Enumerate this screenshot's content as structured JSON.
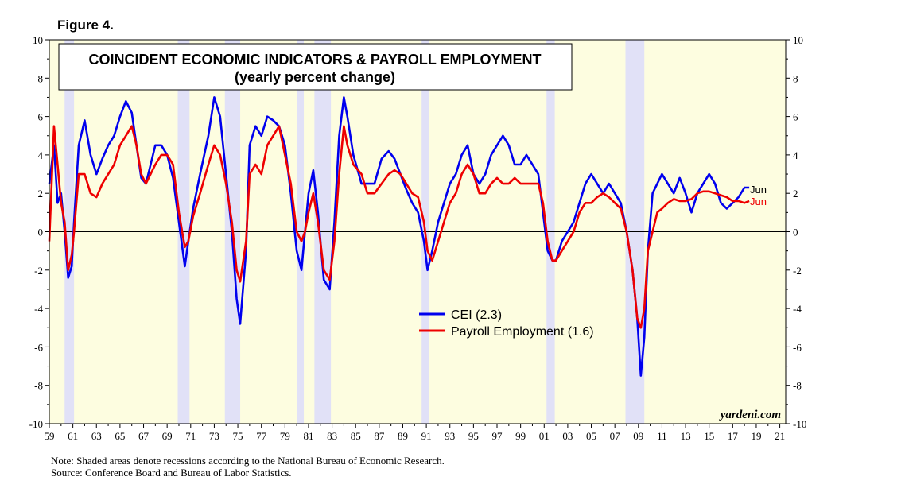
{
  "figure_label": "Figure 4.",
  "notes": {
    "line1": "Note: Shaded areas denote recessions according to the National Bureau of Economic Research.",
    "line2": "Source: Conference Board and Bureau of Labor Statistics."
  },
  "watermark": "yardeni.com",
  "colors": {
    "cei": "#0000ee",
    "payroll": "#ee0000",
    "recession": "#e1e1f7",
    "background": "#fdfde0"
  },
  "chart_data": {
    "type": "line",
    "title": "COINCIDENT ECONOMIC INDICATORS & PAYROLL EMPLOYMENT",
    "subtitle": "(yearly percent change)",
    "xlabel": "",
    "ylabel": "",
    "xlim": [
      1959,
      2021.5
    ],
    "ylim": [
      -10,
      10
    ],
    "grid": false,
    "legend_position": "center-right",
    "x_tick_labels": [
      "59",
      "61",
      "63",
      "65",
      "67",
      "69",
      "71",
      "73",
      "75",
      "77",
      "79",
      "81",
      "83",
      "85",
      "87",
      "89",
      "91",
      "93",
      "95",
      "97",
      "99",
      "01",
      "03",
      "05",
      "07",
      "09",
      "11",
      "13",
      "15",
      "17",
      "19",
      "21"
    ],
    "y_tick_labels": [
      "10",
      "8",
      "6",
      "4",
      "2",
      "0",
      "-2",
      "-4",
      "-6",
      "-8",
      "-10"
    ],
    "recessions": [
      [
        1960.3,
        1961.1
      ],
      [
        1969.9,
        1970.9
      ],
      [
        1973.9,
        1975.2
      ],
      [
        1980.0,
        1980.6
      ],
      [
        1981.5,
        1982.9
      ],
      [
        1990.6,
        1991.2
      ],
      [
        2001.2,
        2001.9
      ],
      [
        2007.9,
        2009.5
      ]
    ],
    "end_labels": {
      "cei": "Jun",
      "payroll": "Jun"
    },
    "series": [
      {
        "name": "CEI (2.3)",
        "x": [
          1959.0,
          1959.4,
          1959.7,
          1960.0,
          1960.3,
          1960.6,
          1960.9,
          1961.1,
          1961.5,
          1962.0,
          1962.5,
          1963.0,
          1963.5,
          1964.0,
          1964.5,
          1965.0,
          1965.5,
          1966.0,
          1966.4,
          1966.8,
          1967.2,
          1967.6,
          1968.0,
          1968.5,
          1969.0,
          1969.5,
          1970.0,
          1970.5,
          1970.8,
          1971.2,
          1971.8,
          1972.5,
          1973.0,
          1973.5,
          1974.0,
          1974.5,
          1974.9,
          1975.2,
          1975.7,
          1976.0,
          1976.5,
          1977.0,
          1977.5,
          1978.0,
          1978.5,
          1979.0,
          1979.5,
          1980.0,
          1980.4,
          1980.7,
          1981.0,
          1981.4,
          1981.8,
          1982.3,
          1982.8,
          1983.2,
          1983.6,
          1984.0,
          1984.3,
          1984.8,
          1985.5,
          1986.0,
          1986.6,
          1987.2,
          1987.8,
          1988.3,
          1988.8,
          1989.3,
          1989.8,
          1990.3,
          1990.8,
          1991.1,
          1991.5,
          1992.0,
          1992.5,
          1993.0,
          1993.5,
          1994.0,
          1994.5,
          1995.0,
          1995.5,
          1996.0,
          1996.5,
          1997.0,
          1997.5,
          1998.0,
          1998.5,
          1999.0,
          1999.5,
          2000.0,
          2000.5,
          2000.9,
          2001.3,
          2001.7,
          2002.0,
          2002.5,
          2003.0,
          2003.5,
          2004.0,
          2004.5,
          2005.0,
          2005.5,
          2006.0,
          2006.5,
          2007.0,
          2007.5,
          2008.0,
          2008.5,
          2008.9,
          2009.2,
          2009.5,
          2009.8,
          2010.2,
          2010.6,
          2011.0,
          2011.5,
          2012.0,
          2012.5,
          2013.0,
          2013.5,
          2014.0,
          2014.5,
          2015.0,
          2015.5,
          2016.0,
          2016.5,
          2017.0,
          2017.5,
          2018.0,
          2018.4
        ],
        "values": [
          2.5,
          4.5,
          1.5,
          2.0,
          0.0,
          -2.4,
          -1.8,
          0.5,
          4.5,
          5.8,
          4.0,
          3.0,
          3.8,
          4.5,
          5.0,
          6.0,
          6.8,
          6.2,
          4.5,
          2.8,
          2.5,
          3.5,
          4.5,
          4.5,
          4.0,
          2.8,
          0.5,
          -1.8,
          -0.5,
          1.2,
          3.0,
          5.0,
          7.0,
          6.0,
          3.0,
          0.0,
          -3.5,
          -4.8,
          -1.0,
          4.5,
          5.5,
          5.0,
          6.0,
          5.8,
          5.5,
          4.5,
          2.0,
          -1.0,
          -2.0,
          0.0,
          2.0,
          3.2,
          1.0,
          -2.5,
          -3.0,
          0.5,
          5.0,
          7.0,
          6.0,
          4.0,
          2.5,
          2.5,
          2.5,
          3.8,
          4.2,
          3.8,
          3.0,
          2.2,
          1.5,
          1.0,
          -0.5,
          -2.0,
          -1.0,
          0.5,
          1.5,
          2.5,
          3.0,
          4.0,
          4.5,
          3.0,
          2.5,
          3.0,
          4.0,
          4.5,
          5.0,
          4.5,
          3.5,
          3.5,
          4.0,
          3.5,
          3.0,
          1.0,
          -1.0,
          -1.5,
          -1.5,
          -0.5,
          0.0,
          0.5,
          1.5,
          2.5,
          3.0,
          2.5,
          2.0,
          2.5,
          2.0,
          1.5,
          0.0,
          -2.0,
          -4.5,
          -7.5,
          -5.5,
          -1.0,
          2.0,
          2.5,
          3.0,
          2.5,
          2.0,
          2.8,
          2.0,
          1.0,
          2.0,
          2.5,
          3.0,
          2.5,
          1.5,
          1.2,
          1.5,
          1.8,
          2.3,
          2.3
        ]
      },
      {
        "name": "Payroll Employment (1.6)",
        "x": [
          1959.0,
          1959.4,
          1959.7,
          1960.0,
          1960.3,
          1960.6,
          1960.9,
          1961.1,
          1961.5,
          1962.0,
          1962.5,
          1963.0,
          1963.5,
          1964.0,
          1964.5,
          1965.0,
          1965.5,
          1966.0,
          1966.4,
          1966.8,
          1967.2,
          1967.6,
          1968.0,
          1968.5,
          1969.0,
          1969.5,
          1970.0,
          1970.5,
          1970.8,
          1971.2,
          1971.8,
          1972.5,
          1973.0,
          1973.5,
          1974.0,
          1974.5,
          1974.9,
          1975.2,
          1975.7,
          1976.0,
          1976.5,
          1977.0,
          1977.5,
          1978.0,
          1978.5,
          1979.0,
          1979.5,
          1980.0,
          1980.4,
          1980.7,
          1981.0,
          1981.4,
          1981.8,
          1982.3,
          1982.8,
          1983.2,
          1983.6,
          1984.0,
          1984.3,
          1984.8,
          1985.5,
          1986.0,
          1986.6,
          1987.2,
          1987.8,
          1988.3,
          1988.8,
          1989.3,
          1989.8,
          1990.3,
          1990.8,
          1991.1,
          1991.5,
          1992.0,
          1992.5,
          1993.0,
          1993.5,
          1994.0,
          1994.5,
          1995.0,
          1995.5,
          1996.0,
          1996.5,
          1997.0,
          1997.5,
          1998.0,
          1998.5,
          1999.0,
          1999.5,
          2000.0,
          2000.5,
          2000.9,
          2001.3,
          2001.7,
          2002.0,
          2002.5,
          2003.0,
          2003.5,
          2004.0,
          2004.5,
          2005.0,
          2005.5,
          2006.0,
          2006.5,
          2007.0,
          2007.5,
          2008.0,
          2008.5,
          2008.9,
          2009.2,
          2009.5,
          2009.8,
          2010.2,
          2010.6,
          2011.0,
          2011.5,
          2012.0,
          2012.5,
          2013.0,
          2013.5,
          2014.0,
          2014.5,
          2015.0,
          2015.5,
          2016.0,
          2016.5,
          2017.0,
          2017.5,
          2018.0,
          2018.4
        ],
        "values": [
          -0.5,
          5.5,
          3.5,
          1.5,
          0.5,
          -2.0,
          -1.2,
          0.0,
          3.0,
          3.0,
          2.0,
          1.8,
          2.5,
          3.0,
          3.5,
          4.5,
          5.0,
          5.5,
          4.5,
          3.0,
          2.5,
          3.0,
          3.5,
          4.0,
          4.0,
          3.5,
          1.0,
          -0.8,
          -0.5,
          0.8,
          2.0,
          3.5,
          4.5,
          4.0,
          2.5,
          0.5,
          -2.0,
          -2.6,
          -0.5,
          3.0,
          3.5,
          3.0,
          4.5,
          5.0,
          5.5,
          4.0,
          2.5,
          0.0,
          -0.5,
          0.0,
          1.0,
          2.0,
          0.5,
          -2.0,
          -2.5,
          -0.5,
          3.0,
          5.5,
          4.5,
          3.5,
          3.0,
          2.0,
          2.0,
          2.5,
          3.0,
          3.2,
          3.0,
          2.5,
          2.0,
          1.8,
          0.5,
          -1.0,
          -1.5,
          -0.5,
          0.5,
          1.5,
          2.0,
          3.0,
          3.5,
          3.0,
          2.0,
          2.0,
          2.5,
          2.8,
          2.5,
          2.5,
          2.8,
          2.5,
          2.5,
          2.5,
          2.5,
          1.5,
          -0.5,
          -1.5,
          -1.5,
          -1.0,
          -0.5,
          0.0,
          1.0,
          1.5,
          1.5,
          1.8,
          2.0,
          1.8,
          1.5,
          1.2,
          0.0,
          -2.0,
          -4.5,
          -5.0,
          -4.0,
          -1.0,
          0.0,
          1.0,
          1.2,
          1.5,
          1.7,
          1.6,
          1.6,
          1.7,
          2.0,
          2.1,
          2.1,
          2.0,
          1.9,
          1.8,
          1.6,
          1.6,
          1.5,
          1.6
        ]
      }
    ]
  }
}
